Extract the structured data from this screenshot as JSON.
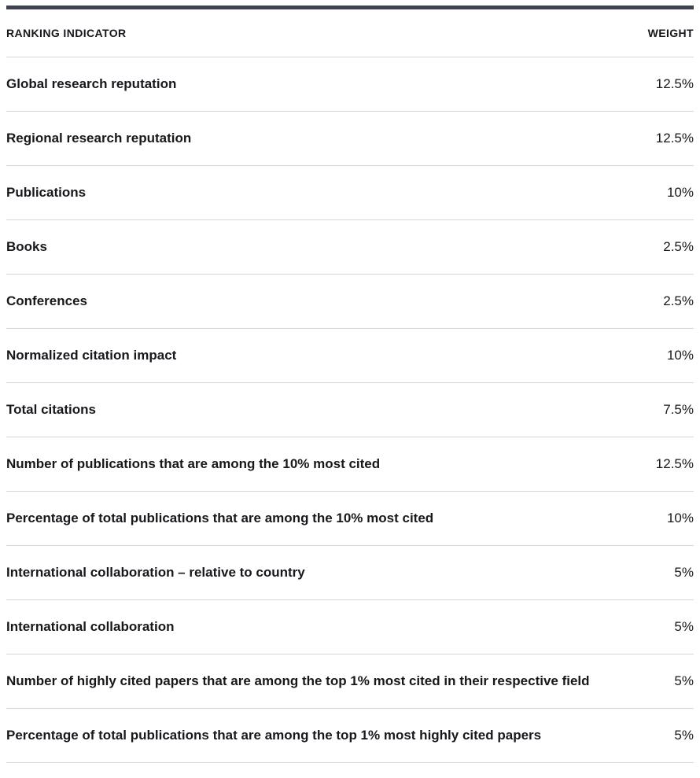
{
  "colors": {
    "top_bar": "#3d434e",
    "text": "#16181c",
    "separator": "#d6d6d6"
  },
  "table": {
    "headers": {
      "indicator": "RANKING INDICATOR",
      "weight": "WEIGHT"
    },
    "rows": [
      {
        "indicator": "Global research reputation",
        "weight": "12.5%"
      },
      {
        "indicator": "Regional research reputation",
        "weight": "12.5%"
      },
      {
        "indicator": "Publications",
        "weight": "10%"
      },
      {
        "indicator": "Books",
        "weight": "2.5%"
      },
      {
        "indicator": "Conferences",
        "weight": "2.5%"
      },
      {
        "indicator": "Normalized citation impact",
        "weight": "10%"
      },
      {
        "indicator": "Total citations",
        "weight": "7.5%"
      },
      {
        "indicator": "Number of publications that are among the 10% most cited",
        "weight": "12.5%"
      },
      {
        "indicator": "Percentage of total publications that are among the 10% most cited",
        "weight": "10%"
      },
      {
        "indicator": "International collaboration – relative to country",
        "weight": "5%"
      },
      {
        "indicator": "International collaboration",
        "weight": "5%"
      },
      {
        "indicator": "Number of highly cited papers that are among the top 1% most cited in their respective field",
        "weight": "5%"
      },
      {
        "indicator": "Percentage of total publications that are among the top 1% most highly cited papers",
        "weight": "5%"
      }
    ]
  },
  "chart_data": {
    "type": "table",
    "columns": [
      "RANKING INDICATOR",
      "WEIGHT"
    ],
    "rows": [
      [
        "Global research reputation",
        "12.5%"
      ],
      [
        "Regional research reputation",
        "12.5%"
      ],
      [
        "Publications",
        "10%"
      ],
      [
        "Books",
        "2.5%"
      ],
      [
        "Conferences",
        "2.5%"
      ],
      [
        "Normalized citation impact",
        "10%"
      ],
      [
        "Total citations",
        "7.5%"
      ],
      [
        "Number of publications that are among the 10% most cited",
        "12.5%"
      ],
      [
        "Percentage of total publications that are among the 10% most cited",
        "10%"
      ],
      [
        "International collaboration – relative to country",
        "5%"
      ],
      [
        "International collaboration",
        "5%"
      ],
      [
        "Number of highly cited papers that are among the top 1% most cited in their respective field",
        "5%"
      ],
      [
        "Percentage of total publications that are among the top 1% most highly cited papers",
        "5%"
      ]
    ],
    "weights_numeric": [
      12.5,
      12.5,
      10,
      2.5,
      2.5,
      10,
      7.5,
      12.5,
      10,
      5,
      5,
      5,
      5
    ]
  }
}
